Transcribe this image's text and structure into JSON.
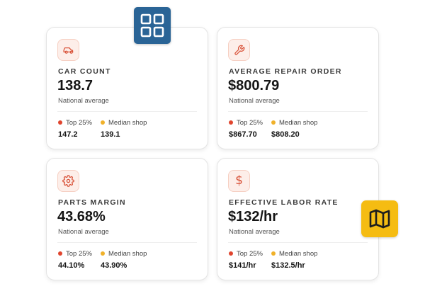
{
  "colors": {
    "accent": "#d9533a",
    "icon_bg": "#fdeee9",
    "top25_dot": "#e0452e",
    "median_dot": "#f0b12a",
    "grid_badge": "#2a6496",
    "map_badge": "#f5bc12"
  },
  "badges": {
    "grid": {
      "icon": "grid-icon"
    },
    "map": {
      "icon": "map-icon"
    }
  },
  "legend": {
    "top": "Top 25%",
    "median": "Median shop"
  },
  "cards": [
    {
      "icon": "car-icon",
      "label": "CAR COUNT",
      "value": "138.7",
      "sub": "National average",
      "top25": "147.2",
      "median": "139.1"
    },
    {
      "icon": "wrench-icon",
      "label": "AVERAGE REPAIR ORDER",
      "value": "$800.79",
      "sub": "National average",
      "top25": "$867.70",
      "median": "$808.20"
    },
    {
      "icon": "gear-icon",
      "label": "PARTS MARGIN",
      "value": "43.68%",
      "sub": "National average",
      "top25": "44.10%",
      "median": "43.90%"
    },
    {
      "icon": "dollar-icon",
      "label": "EFFECTIVE LABOR RATE",
      "value": "$132/hr",
      "sub": "National average",
      "top25": "$141/hr",
      "median": "$132.5/hr",
      "dollar_glyph": "$"
    }
  ]
}
